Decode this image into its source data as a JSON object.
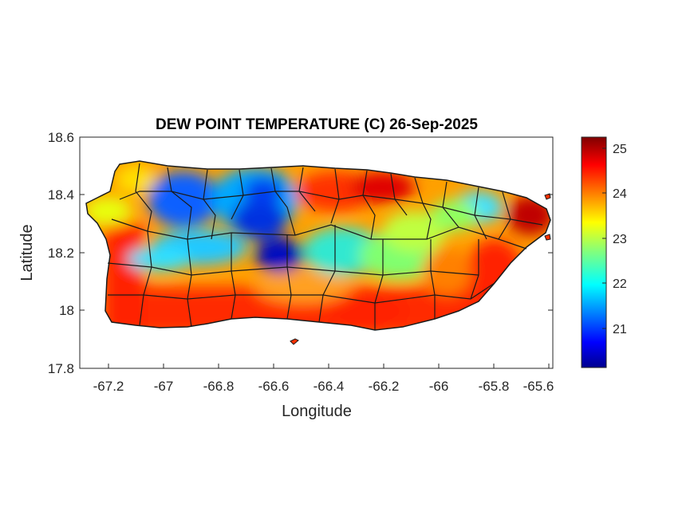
{
  "title": "DEW POINT TEMPERATURE (C) 26-Sep-2025",
  "axes": {
    "xlabel": "Longitude",
    "ylabel": "Latitude",
    "xticks": [
      "-67.2",
      "-67",
      "-66.8",
      "-66.6",
      "-66.4",
      "-66.2",
      "-66",
      "-65.8",
      "-65.6"
    ],
    "yticks": [
      "18.6",
      "18.4",
      "18.2",
      "18",
      "17.8"
    ],
    "xlim": [
      -67.3,
      -65.58
    ],
    "ylim": [
      17.8,
      18.6
    ]
  },
  "colorbar": {
    "ticks": [
      "25",
      "24",
      "23",
      "22",
      "21"
    ],
    "range": [
      20.1,
      25.3
    ],
    "colormap": "jet"
  },
  "colors": {
    "outline": "#1a1a1a",
    "axis": "#262626",
    "background": "#ffffff"
  }
}
